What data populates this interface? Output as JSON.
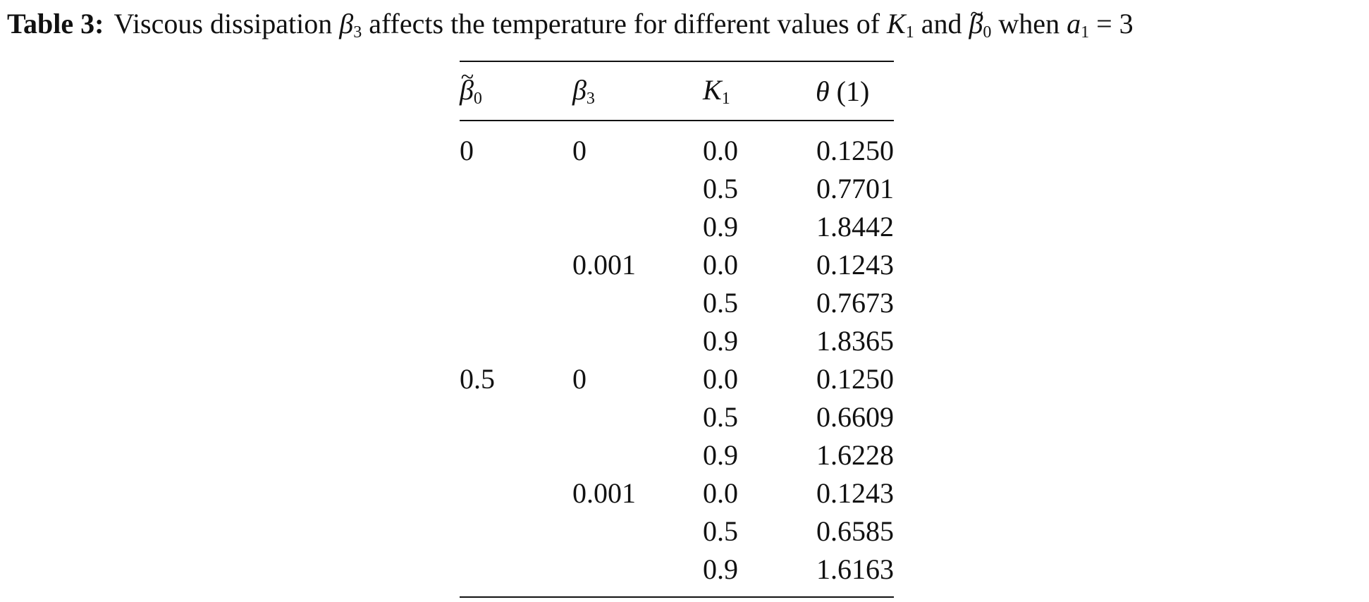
{
  "caption": {
    "label": "Table 3:",
    "text_1": "Viscous dissipation ",
    "beta3_symbol": "β",
    "beta3_sub": "3",
    "text_2": " affects the temperature for different values of ",
    "k1_symbol": "K",
    "k1_sub": "1",
    "text_3": " and ",
    "beta0_symbol": "β",
    "beta0_sub": "0",
    "text_4": " when ",
    "a1_symbol": "a",
    "a1_sub": "1",
    "text_5": " = 3",
    "tilde": "~"
  },
  "table": {
    "headers": {
      "beta0": {
        "symbol": "β",
        "sub": "0",
        "tilde": "~"
      },
      "beta3": {
        "symbol": "β",
        "sub": "3"
      },
      "k1": {
        "symbol": "K",
        "sub": "1"
      },
      "theta": {
        "symbol": "θ",
        "arg": " (1)"
      }
    },
    "rows": [
      {
        "beta0": "0",
        "beta3": "0",
        "k1": "0.0",
        "theta": "0.1250"
      },
      {
        "beta0": "",
        "beta3": "",
        "k1": "0.5",
        "theta": "0.7701"
      },
      {
        "beta0": "",
        "beta3": "",
        "k1": "0.9",
        "theta": "1.8442"
      },
      {
        "beta0": "",
        "beta3": "0.001",
        "k1": "0.0",
        "theta": "0.1243"
      },
      {
        "beta0": "",
        "beta3": "",
        "k1": "0.5",
        "theta": "0.7673"
      },
      {
        "beta0": "",
        "beta3": "",
        "k1": "0.9",
        "theta": "1.8365"
      },
      {
        "beta0": "0.5",
        "beta3": "0",
        "k1": "0.0",
        "theta": "0.1250"
      },
      {
        "beta0": "",
        "beta3": "",
        "k1": "0.5",
        "theta": "0.6609"
      },
      {
        "beta0": "",
        "beta3": "",
        "k1": "0.9",
        "theta": "1.6228"
      },
      {
        "beta0": "",
        "beta3": "0.001",
        "k1": "0.0",
        "theta": "0.1243"
      },
      {
        "beta0": "",
        "beta3": "",
        "k1": "0.5",
        "theta": "0.6585"
      },
      {
        "beta0": "",
        "beta3": "",
        "k1": "0.9",
        "theta": "1.6163"
      }
    ]
  }
}
